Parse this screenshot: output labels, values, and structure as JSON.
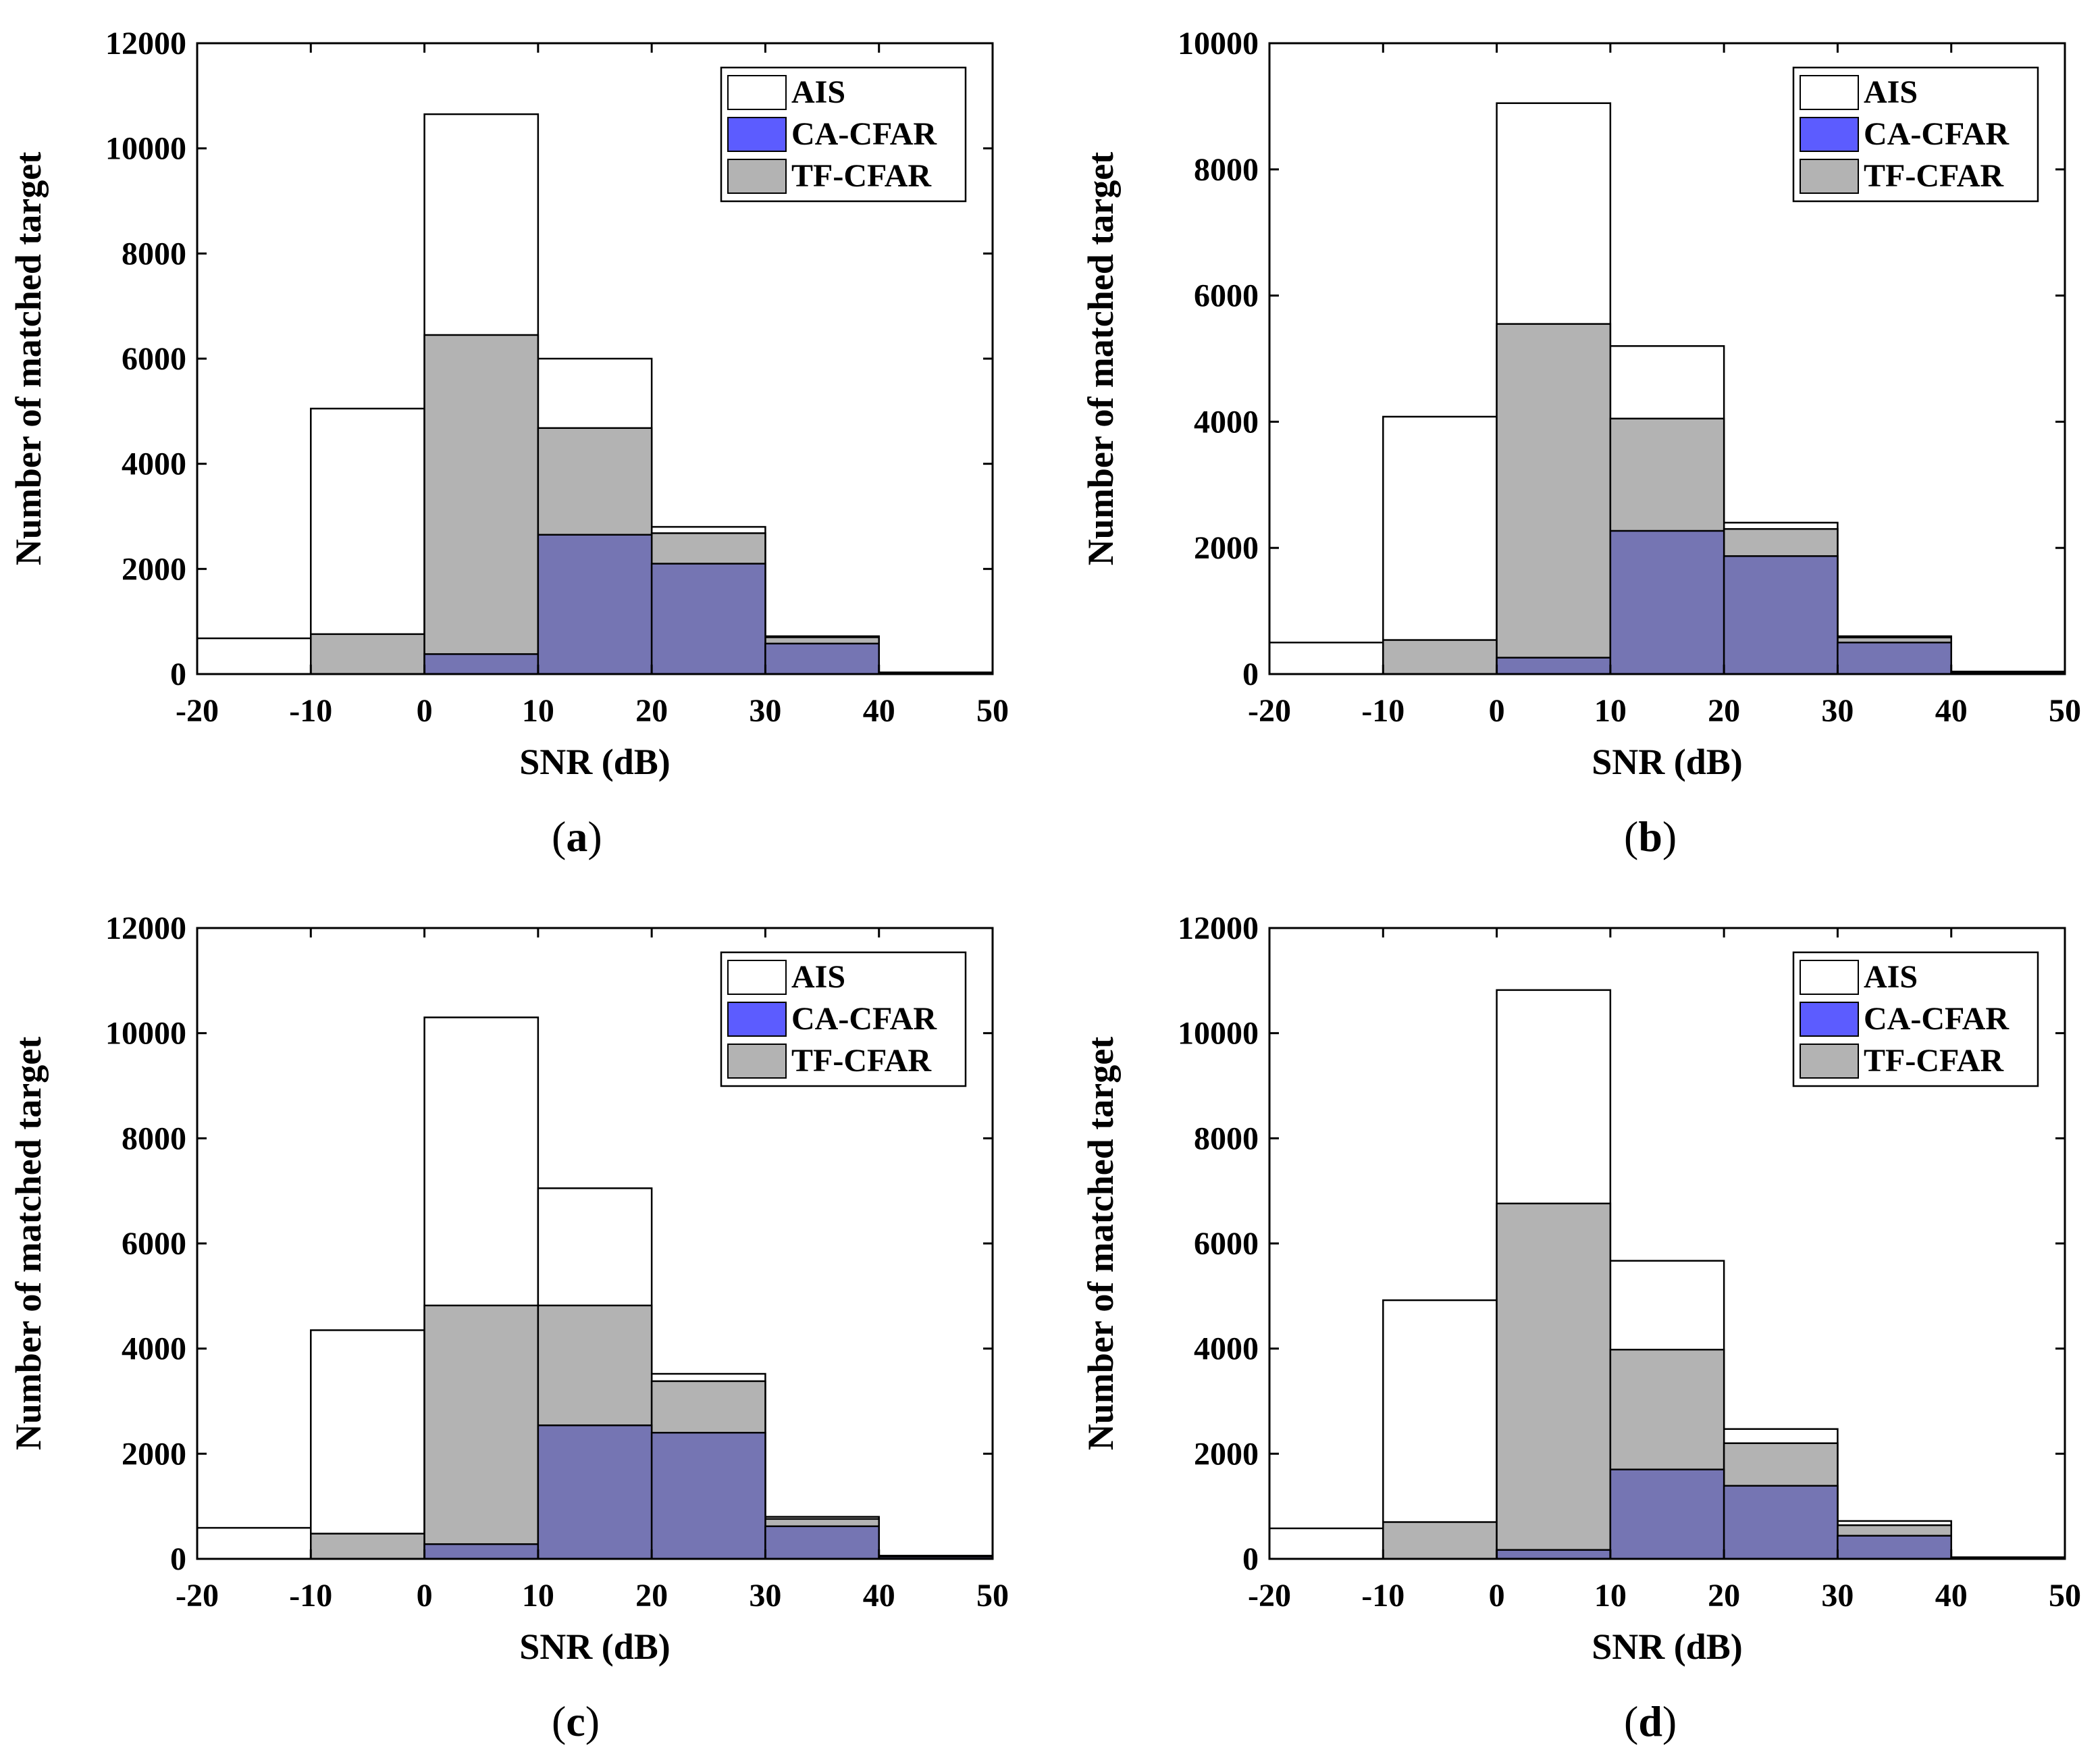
{
  "chart_data": [
    {
      "type": "bar",
      "panel_label": "a",
      "caption_open": "(",
      "caption_close": ")",
      "xlabel": "SNR (dB)",
      "ylabel": "Number of matched target",
      "bin_edges": [
        -20,
        -10,
        0,
        10,
        20,
        30,
        40,
        50
      ],
      "xticks": [
        -20,
        -10,
        0,
        10,
        20,
        30,
        40,
        50
      ],
      "yticks": [
        0,
        2000,
        4000,
        6000,
        8000,
        10000,
        12000
      ],
      "ylim": [
        0,
        12000
      ],
      "xlim": [
        -20,
        50
      ],
      "legend_position": "top-right",
      "series": [
        {
          "name": "AIS",
          "color": "#ffffff",
          "values": [
            680,
            5050,
            10650,
            6000,
            2800,
            720,
            30
          ]
        },
        {
          "name": "TF-CFAR",
          "color": "#b3b3b3",
          "values": [
            0,
            760,
            6450,
            4680,
            2680,
            700,
            30
          ]
        },
        {
          "name": "CA-CFAR",
          "color": "#7575b3",
          "values": [
            0,
            0,
            380,
            2650,
            2100,
            580,
            30
          ]
        }
      ],
      "legend": [
        {
          "name": "AIS",
          "color": "#ffffff"
        },
        {
          "name": "CA-CFAR",
          "color": "#5c5cff"
        },
        {
          "name": "TF-CFAR",
          "color": "#b3b3b3"
        }
      ]
    },
    {
      "type": "bar",
      "panel_label": "b",
      "caption_open": "(",
      "caption_close": ")",
      "xlabel": "SNR (dB)",
      "ylabel": "Number of matched target",
      "bin_edges": [
        -20,
        -10,
        0,
        10,
        20,
        30,
        40,
        50
      ],
      "xticks": [
        -20,
        -10,
        0,
        10,
        20,
        30,
        40,
        50
      ],
      "yticks": [
        0,
        2000,
        4000,
        6000,
        8000,
        10000
      ],
      "ylim": [
        0,
        10000
      ],
      "xlim": [
        -20,
        50
      ],
      "legend_position": "top-right",
      "series": [
        {
          "name": "AIS",
          "color": "#ffffff",
          "values": [
            500,
            4080,
            9050,
            5200,
            2400,
            600,
            40
          ]
        },
        {
          "name": "TF-CFAR",
          "color": "#b3b3b3",
          "values": [
            0,
            540,
            5550,
            4050,
            2300,
            580,
            40
          ]
        },
        {
          "name": "CA-CFAR",
          "color": "#7575b3",
          "values": [
            0,
            0,
            260,
            2270,
            1870,
            500,
            30
          ]
        }
      ],
      "legend": [
        {
          "name": "AIS",
          "color": "#ffffff"
        },
        {
          "name": "CA-CFAR",
          "color": "#5c5cff"
        },
        {
          "name": "TF-CFAR",
          "color": "#b3b3b3"
        }
      ]
    },
    {
      "type": "bar",
      "panel_label": "c",
      "caption_open": "(",
      "caption_close": ")",
      "xlabel": "SNR (dB)",
      "ylabel": "Number of matched target",
      "bin_edges": [
        -20,
        -10,
        0,
        10,
        20,
        30,
        40,
        50
      ],
      "xticks": [
        -20,
        -10,
        0,
        10,
        20,
        30,
        40,
        50
      ],
      "yticks": [
        0,
        2000,
        4000,
        6000,
        8000,
        10000,
        12000
      ],
      "ylim": [
        0,
        12000
      ],
      "xlim": [
        -20,
        50
      ],
      "legend_position": "top-right",
      "series": [
        {
          "name": "AIS",
          "color": "#ffffff",
          "values": [
            590,
            4350,
            10300,
            7050,
            3520,
            800,
            60
          ]
        },
        {
          "name": "TF-CFAR",
          "color": "#b3b3b3",
          "values": [
            0,
            480,
            4820,
            4820,
            3380,
            760,
            60
          ]
        },
        {
          "name": "CA-CFAR",
          "color": "#7575b3",
          "values": [
            0,
            0,
            280,
            2540,
            2400,
            620,
            40
          ]
        }
      ],
      "legend": [
        {
          "name": "AIS",
          "color": "#ffffff"
        },
        {
          "name": "CA-CFAR",
          "color": "#5c5cff"
        },
        {
          "name": "TF-CFAR",
          "color": "#b3b3b3"
        }
      ]
    },
    {
      "type": "bar",
      "panel_label": "d",
      "caption_open": "(",
      "caption_close": ")",
      "xlabel": "SNR (dB)",
      "ylabel": "Number of matched target",
      "bin_edges": [
        -20,
        -10,
        0,
        10,
        20,
        30,
        40,
        50
      ],
      "xticks": [
        -20,
        -10,
        0,
        10,
        20,
        30,
        40,
        50
      ],
      "yticks": [
        0,
        2000,
        4000,
        6000,
        8000,
        10000,
        12000
      ],
      "ylim": [
        0,
        12000
      ],
      "xlim": [
        -20,
        50
      ],
      "legend_position": "top-right",
      "series": [
        {
          "name": "AIS",
          "color": "#ffffff",
          "values": [
            580,
            4920,
            10820,
            5670,
            2470,
            720,
            30
          ]
        },
        {
          "name": "TF-CFAR",
          "color": "#b3b3b3",
          "values": [
            0,
            700,
            6760,
            3980,
            2200,
            640,
            30
          ]
        },
        {
          "name": "CA-CFAR",
          "color": "#7575b3",
          "values": [
            0,
            0,
            170,
            1700,
            1390,
            440,
            20
          ]
        }
      ],
      "legend": [
        {
          "name": "AIS",
          "color": "#ffffff"
        },
        {
          "name": "CA-CFAR",
          "color": "#5c5cff"
        },
        {
          "name": "TF-CFAR",
          "color": "#b3b3b3"
        }
      ]
    }
  ]
}
